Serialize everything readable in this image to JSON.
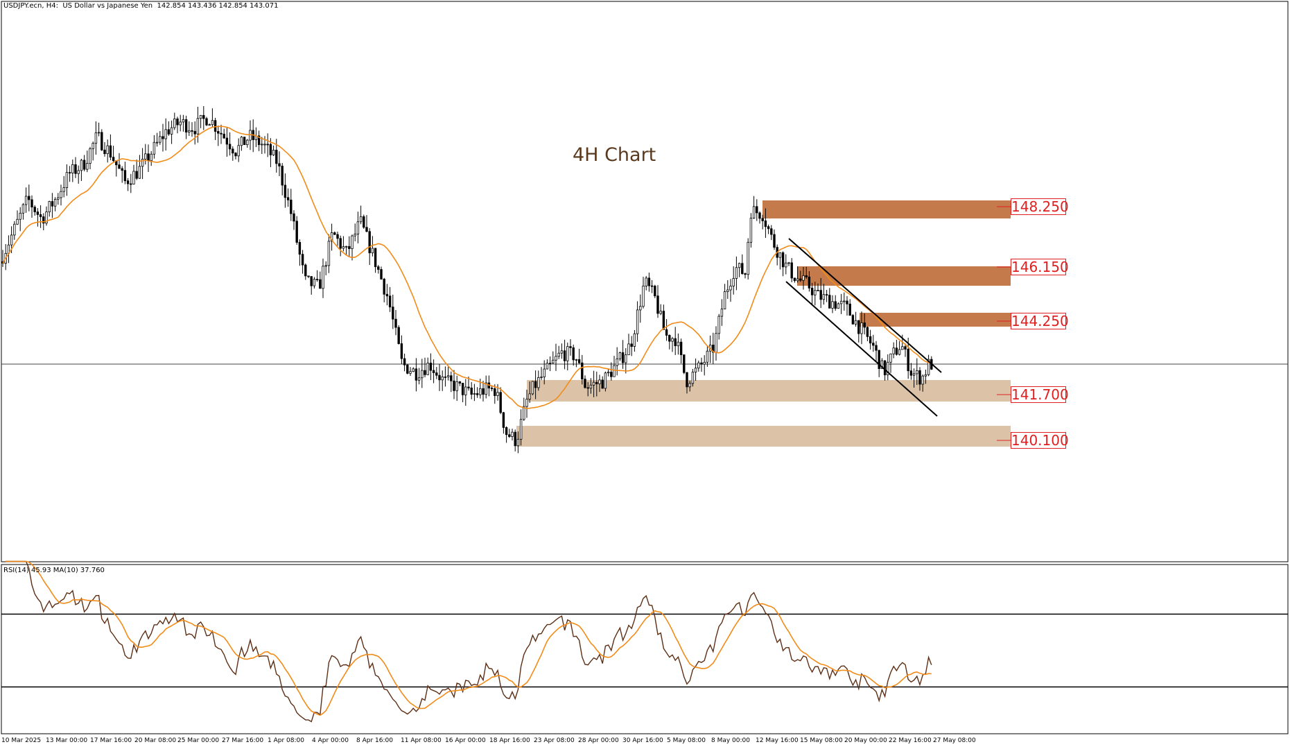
{
  "header": {
    "symbol": "USDJPY.ecn",
    "timeframe": "H4",
    "description": "US Dollar vs Japanese Yen",
    "ohlc": "142.854 143.436 142.854 143.071",
    "text": "USDJPY.ecn, H4:  US Dollar vs Japanese Yen  142.854 143.436 142.854 143.071"
  },
  "chart_title": "4H Chart",
  "rsi_header": "RSI(14) 45.93 MA(10) 37.760",
  "colors": {
    "resistance_zone": "#c47a4a",
    "support_zone": "#dcc3a8",
    "ma_line": "#f28b18",
    "rsi_line": "#5c2e14",
    "level_label": "#e02020",
    "candle": "#000000"
  },
  "chart_data": {
    "type": "candlestick",
    "price_levels": {
      "resistance": [
        148.25,
        146.15,
        144.25
      ],
      "support": [
        141.7,
        140.1
      ],
      "current_price_line": 142.9
    },
    "price_label_text": [
      "148.250",
      "146.150",
      "144.250",
      "141.700",
      "140.100"
    ],
    "ylim": [
      136.0,
      155.7
    ],
    "x_tick_labels": [
      "10 Mar 2025",
      "13 Mar 00:00",
      "17 Mar 16:00",
      "20 Mar 08:00",
      "25 Mar 00:00",
      "27 Mar 16:00",
      "1 Apr 08:00",
      "4 Apr 00:00",
      "8 Apr 16:00",
      "11 Apr 08:00",
      "16 Apr 00:00",
      "18 Apr 16:00",
      "23 Apr 08:00",
      "28 Apr 00:00",
      "30 Apr 16:00",
      "5 May 08:00",
      "8 May 00:00",
      "12 May 16:00",
      "15 May 08:00",
      "20 May 00:00",
      "22 May 16:00",
      "27 May 08:00"
    ],
    "price_path_keypoints": [
      [
        0,
        146.5
      ],
      [
        20,
        147.6
      ],
      [
        40,
        148.7
      ],
      [
        60,
        148.0
      ],
      [
        80,
        148.7
      ],
      [
        100,
        149.6
      ],
      [
        120,
        149.9
      ],
      [
        140,
        150.9
      ],
      [
        160,
        150.3
      ],
      [
        180,
        149.3
      ],
      [
        200,
        149.7
      ],
      [
        220,
        150.4
      ],
      [
        240,
        151.1
      ],
      [
        260,
        151.4
      ],
      [
        280,
        151.2
      ],
      [
        300,
        151.6
      ],
      [
        320,
        151.0
      ],
      [
        340,
        150.4
      ],
      [
        360,
        150.9
      ],
      [
        380,
        150.6
      ],
      [
        400,
        150.0
      ],
      [
        420,
        148.2
      ],
      [
        440,
        145.8
      ],
      [
        460,
        145.6
      ],
      [
        480,
        147.5
      ],
      [
        500,
        146.8
      ],
      [
        520,
        147.9
      ],
      [
        540,
        146.6
      ],
      [
        560,
        145.2
      ],
      [
        580,
        142.9
      ],
      [
        600,
        142.6
      ],
      [
        620,
        142.9
      ],
      [
        640,
        142.3
      ],
      [
        660,
        142.1
      ],
      [
        680,
        141.8
      ],
      [
        700,
        142.0
      ],
      [
        715,
        142.0
      ],
      [
        730,
        140.5
      ],
      [
        745,
        140.2
      ],
      [
        760,
        141.6
      ],
      [
        770,
        142.1
      ],
      [
        790,
        142.7
      ],
      [
        810,
        143.3
      ],
      [
        830,
        143.2
      ],
      [
        845,
        142.1
      ],
      [
        870,
        142.3
      ],
      [
        890,
        142.9
      ],
      [
        910,
        143.6
      ],
      [
        930,
        145.8
      ],
      [
        945,
        145.2
      ],
      [
        960,
        143.9
      ],
      [
        975,
        143.8
      ],
      [
        990,
        142.3
      ],
      [
        1010,
        142.8
      ],
      [
        1030,
        143.5
      ],
      [
        1045,
        145.3
      ],
      [
        1060,
        146.3
      ],
      [
        1075,
        146.1
      ],
      [
        1083,
        148.3
      ],
      [
        1100,
        148.2
      ],
      [
        1115,
        147.2
      ],
      [
        1135,
        146.3
      ],
      [
        1150,
        145.9
      ],
      [
        1165,
        145.7
      ],
      [
        1180,
        145.3
      ],
      [
        1200,
        145.1
      ],
      [
        1220,
        144.9
      ],
      [
        1240,
        144.2
      ],
      [
        1260,
        143.5
      ],
      [
        1275,
        142.6
      ],
      [
        1290,
        143.3
      ],
      [
        1300,
        143.6
      ],
      [
        1315,
        142.6
      ],
      [
        1330,
        142.4
      ],
      [
        1340,
        142.9
      ]
    ],
    "rsi": {
      "upper_level": 70,
      "lower_level": 30,
      "current": 45.93,
      "ma_current": 37.76
    }
  }
}
